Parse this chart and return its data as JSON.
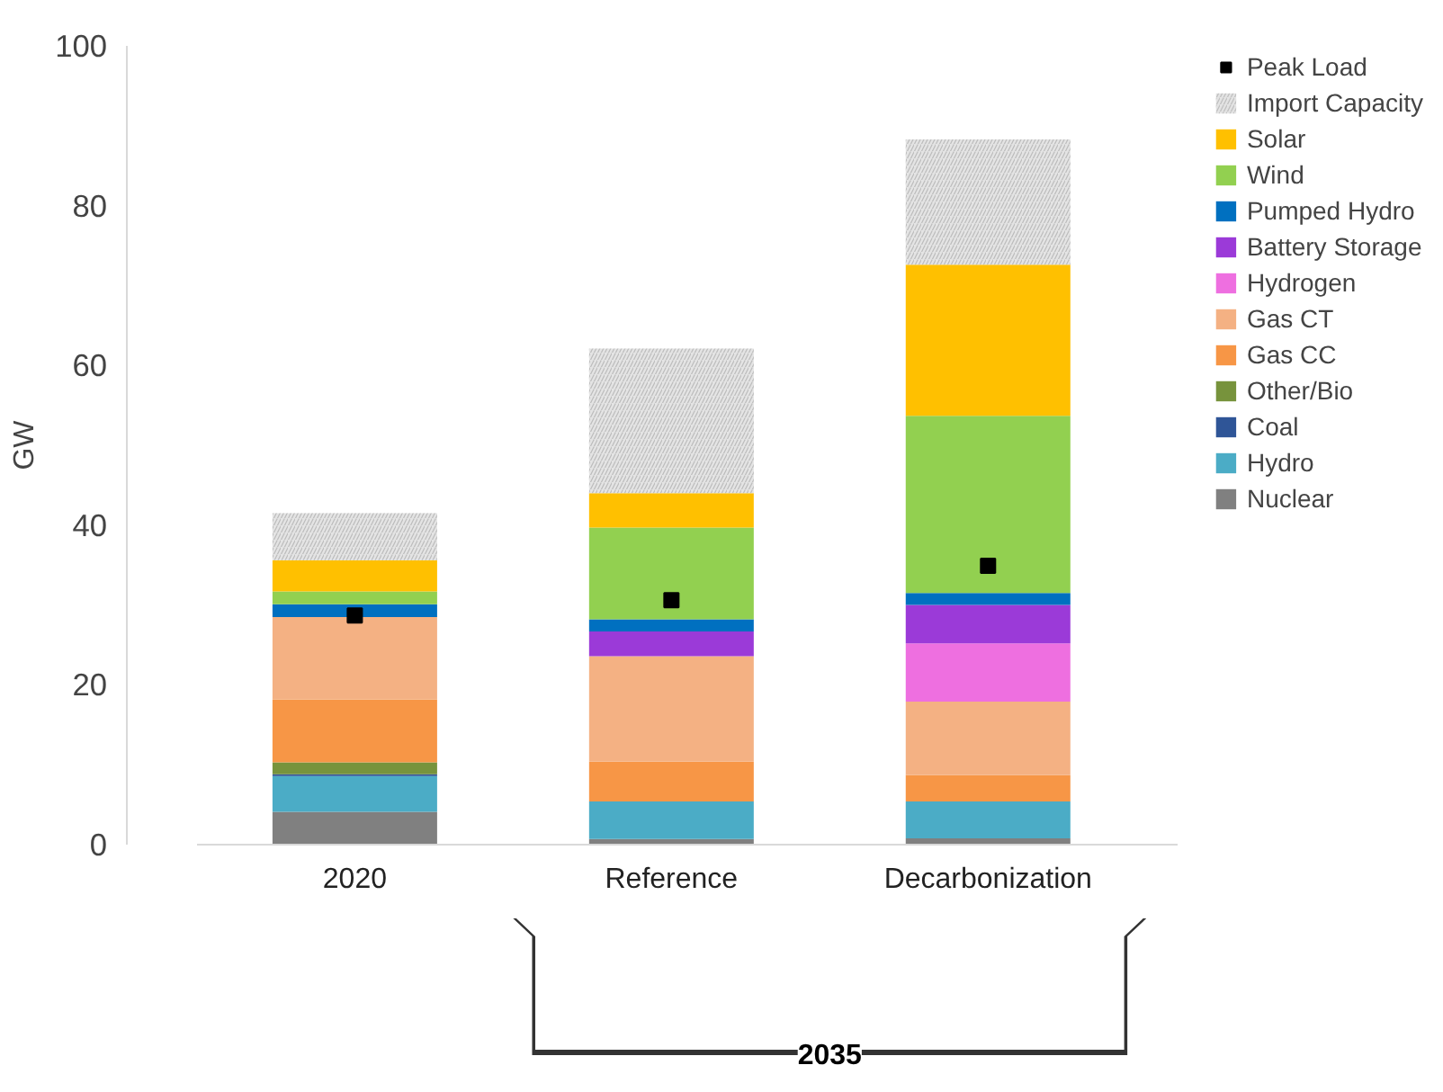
{
  "chart_data": {
    "type": "bar",
    "stacked": true,
    "ylabel": "GW",
    "categories": [
      "2020",
      "Reference",
      "Decarbonization"
    ],
    "ylim": [
      0,
      100
    ],
    "yticks": [
      0,
      20,
      40,
      60,
      80,
      100
    ],
    "grid": false,
    "legend": "right",
    "annotations": [
      "2035"
    ],
    "series": [
      {
        "name": "Nuclear",
        "color": "#808080",
        "values": [
          4.1,
          0.7,
          0.8
        ]
      },
      {
        "name": "Hydro",
        "color": "#4bacc6",
        "values": [
          4.5,
          4.7,
          4.6
        ]
      },
      {
        "name": "Coal",
        "color": "#2f5597",
        "values": [
          0.2,
          0,
          0
        ]
      },
      {
        "name": "Other/Bio",
        "color": "#77933c",
        "values": [
          1.5,
          0,
          0
        ]
      },
      {
        "name": "Gas CC",
        "color": "#f79646",
        "values": [
          7.9,
          5.0,
          3.3
        ]
      },
      {
        "name": "Gas CT",
        "color": "#f4b183",
        "values": [
          10.3,
          13.2,
          9.2
        ]
      },
      {
        "name": "Hydrogen",
        "color": "#ee6fe0",
        "values": [
          0,
          0,
          7.3
        ]
      },
      {
        "name": "Battery Storage",
        "color": "#9b3ad8",
        "values": [
          0,
          3.1,
          4.8
        ]
      },
      {
        "name": "Pumped Hydro",
        "color": "#0070c0",
        "values": [
          1.6,
          1.5,
          1.5
        ]
      },
      {
        "name": "Wind",
        "color": "#92d050",
        "values": [
          1.6,
          11.5,
          22.2
        ]
      },
      {
        "name": "Solar",
        "color": "#ffc000",
        "values": [
          3.9,
          4.3,
          18.9
        ]
      },
      {
        "name": "Import Capacity",
        "color": "#e4e4e4",
        "values": [
          5.9,
          18.1,
          15.7
        ]
      },
      {
        "name": "Peak Load",
        "type": "scatter",
        "marker": "square",
        "color": "#000000",
        "values": [
          28.7,
          30.6,
          34.9
        ]
      }
    ]
  }
}
